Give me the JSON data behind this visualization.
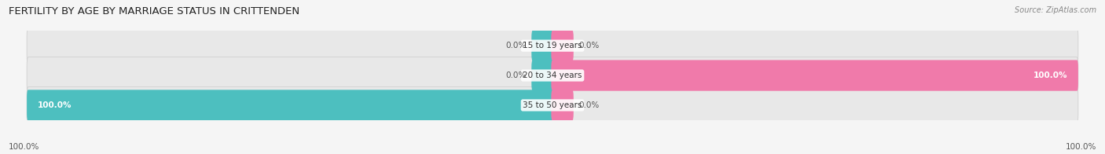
{
  "title": "FERTILITY BY AGE BY MARRIAGE STATUS IN CRITTENDEN",
  "source": "Source: ZipAtlas.com",
  "categories": [
    "15 to 19 years",
    "20 to 34 years",
    "35 to 50 years"
  ],
  "married_values": [
    0.0,
    0.0,
    100.0
  ],
  "unmarried_values": [
    0.0,
    100.0,
    0.0
  ],
  "married_color": "#4dbfbf",
  "unmarried_color": "#f07aaa",
  "bar_bg_color": "#e8e8e8",
  "bar_bg_border": "#d0d0d0",
  "bar_height": 0.62,
  "title_fontsize": 9.5,
  "label_fontsize": 7.5,
  "cat_fontsize": 7.5,
  "source_fontsize": 7,
  "background_color": "#f5f5f5",
  "xlim_left": -103,
  "xlim_right": 103,
  "bottom_left_label": "100.0%",
  "bottom_right_label": "100.0%"
}
